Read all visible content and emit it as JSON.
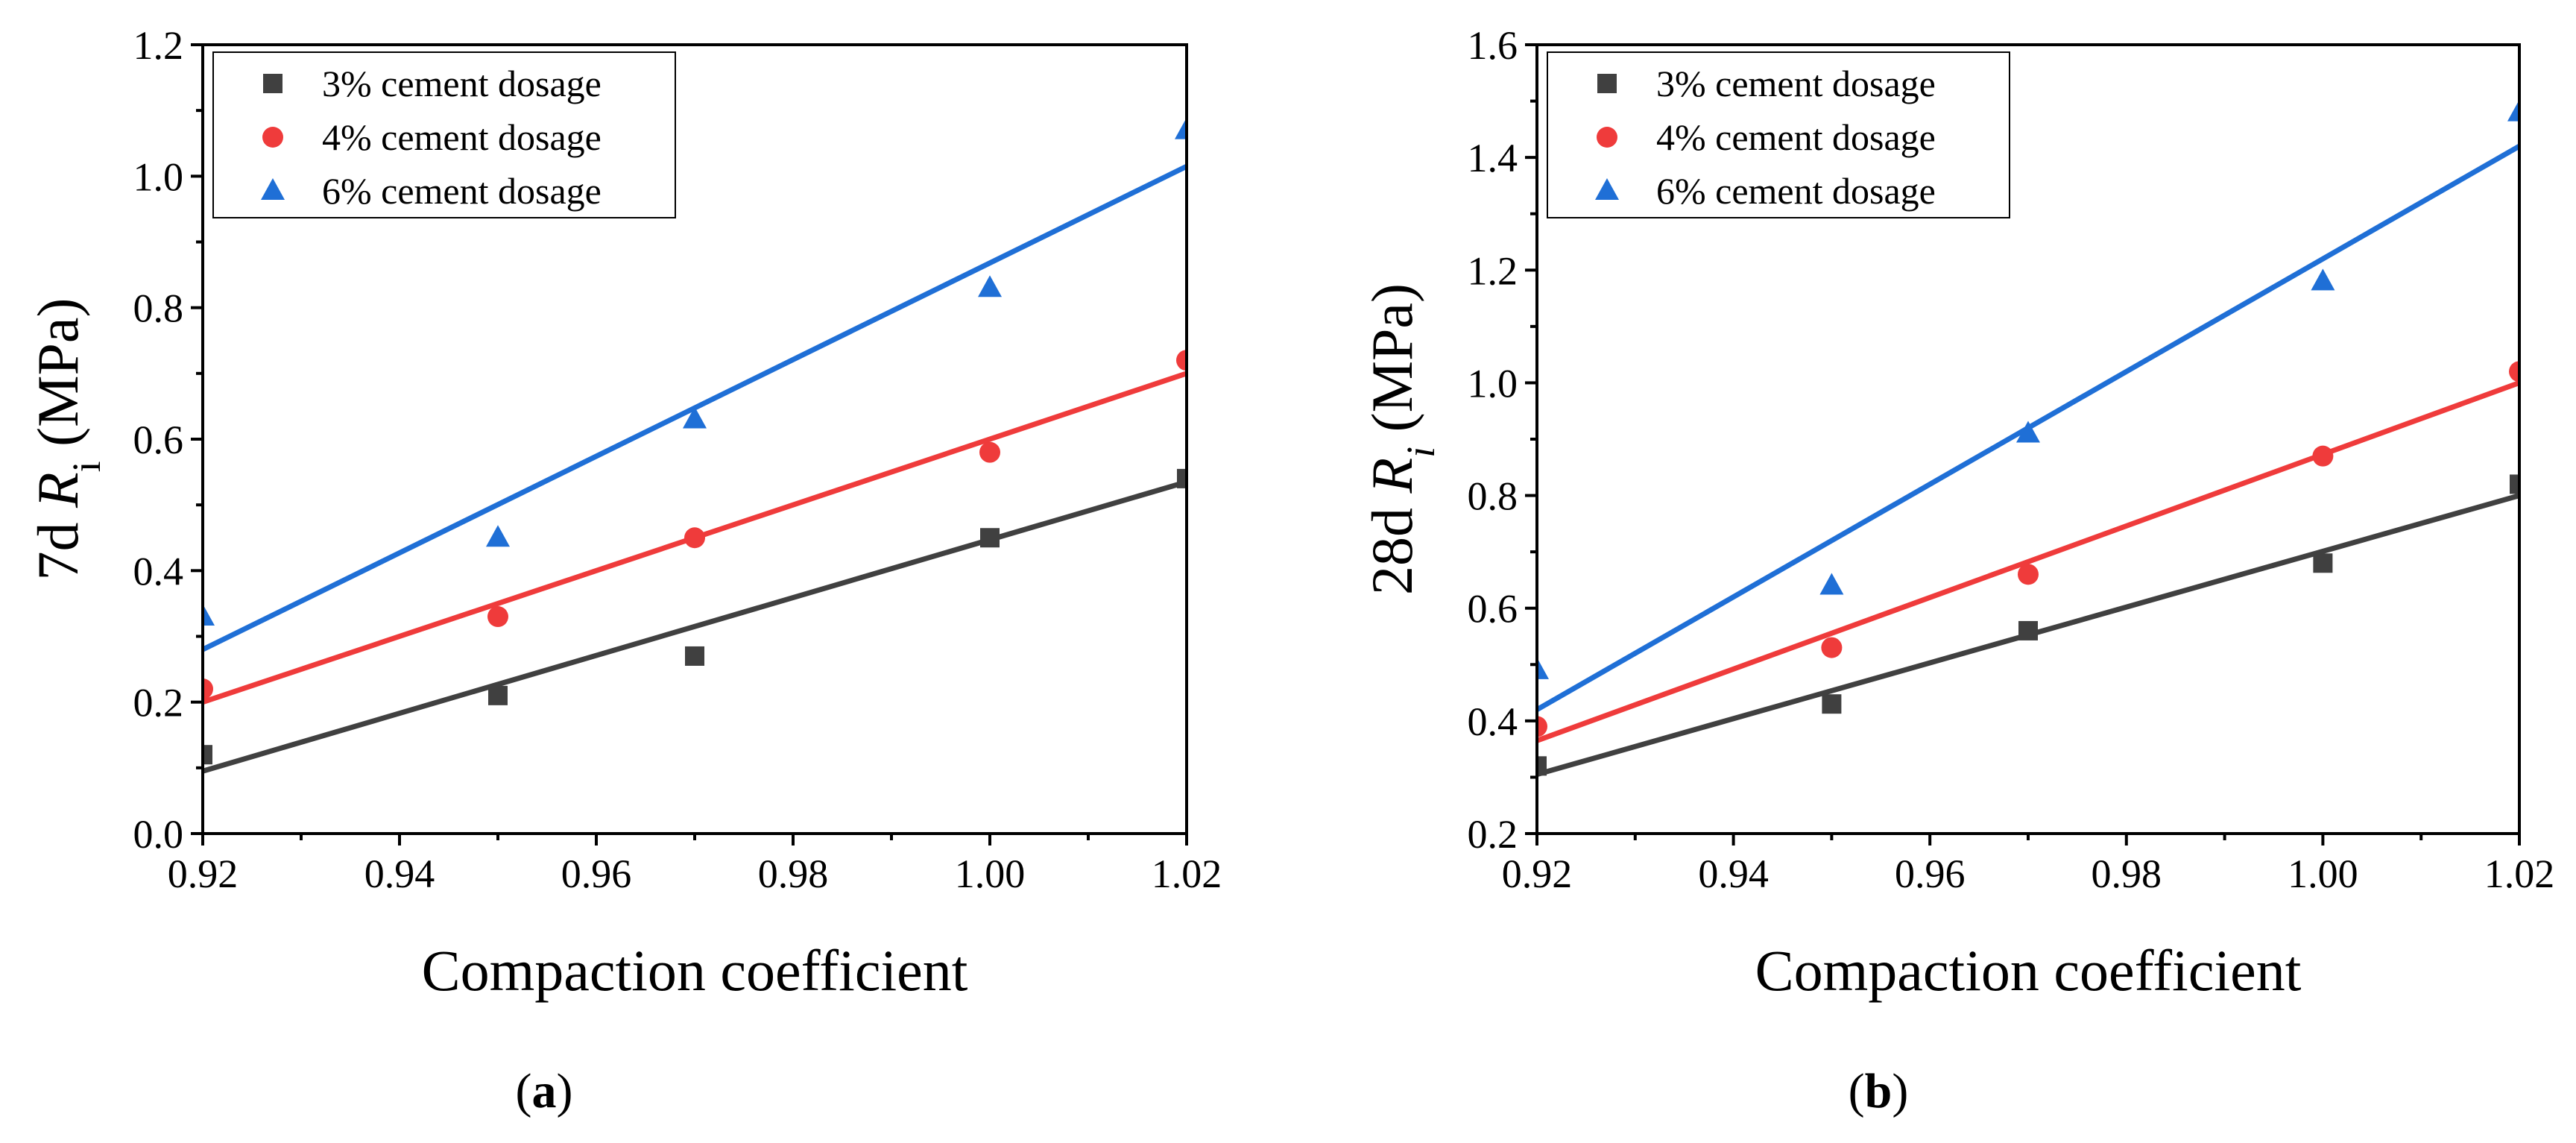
{
  "chart_data": [
    {
      "type": "scatter",
      "panel_label": "a",
      "xlabel": "Compaction coefficient",
      "ylabel_prefix": "7d ",
      "ylabel_var": "R",
      "ylabel_sub": "i",
      "ylabel_unit": " (MPa)",
      "xlim": [
        0.92,
        1.02
      ],
      "ylim": [
        0.0,
        1.2
      ],
      "xticks": [
        "0.92",
        "0.94",
        "0.96",
        "0.98",
        "1.00",
        "1.02"
      ],
      "yticks": [
        "0.0",
        "0.2",
        "0.4",
        "0.6",
        "0.8",
        "1.0",
        "1.2"
      ],
      "legend_position": "top-left",
      "x": [
        0.92,
        0.95,
        0.97,
        1.0,
        1.02
      ],
      "series": [
        {
          "name": "3% cement dosage",
          "marker": "square",
          "color": "#404040",
          "values": [
            0.12,
            0.21,
            0.27,
            0.45,
            0.54
          ],
          "fit": [
            0.095,
            0.535
          ]
        },
        {
          "name": "4% cement dosage",
          "marker": "circle",
          "color": "#ef3b3b",
          "values": [
            0.22,
            0.33,
            0.45,
            0.58,
            0.72
          ],
          "fit": [
            0.2,
            0.7
          ]
        },
        {
          "name": "6% cement dosage",
          "marker": "triangle",
          "color": "#1f6fd6",
          "values": [
            0.33,
            0.45,
            0.63,
            0.83,
            1.07
          ],
          "fit": [
            0.28,
            1.015
          ]
        }
      ]
    },
    {
      "type": "scatter",
      "panel_label": "b",
      "xlabel": "Compaction coefficient",
      "ylabel_prefix": "28d ",
      "ylabel_var": "R",
      "ylabel_sub": "i",
      "ylabel_unit": " (MPa)",
      "xlim": [
        0.92,
        1.02
      ],
      "ylim": [
        0.2,
        1.6
      ],
      "xticks": [
        "0.92",
        "0.94",
        "0.96",
        "0.98",
        "1.00",
        "1.02"
      ],
      "yticks": [
        "0.2",
        "0.4",
        "0.6",
        "0.8",
        "1.0",
        "1.2",
        "1.4",
        "1.6"
      ],
      "legend_position": "top-left",
      "x": [
        0.92,
        0.95,
        0.97,
        1.0,
        1.02
      ],
      "series": [
        {
          "name": "3% cement dosage",
          "marker": "square",
          "color": "#404040",
          "values": [
            0.32,
            0.43,
            0.56,
            0.68,
            0.82
          ],
          "fit": [
            0.305,
            0.8
          ]
        },
        {
          "name": "4% cement dosage",
          "marker": "circle",
          "color": "#ef3b3b",
          "values": [
            0.39,
            0.53,
            0.66,
            0.87,
            1.02
          ],
          "fit": [
            0.365,
            1.0
          ]
        },
        {
          "name": "6% cement dosage",
          "marker": "triangle",
          "color": "#1f6fd6",
          "values": [
            0.49,
            0.64,
            0.91,
            1.18,
            1.48
          ],
          "fit": [
            0.42,
            1.42
          ]
        }
      ]
    }
  ]
}
